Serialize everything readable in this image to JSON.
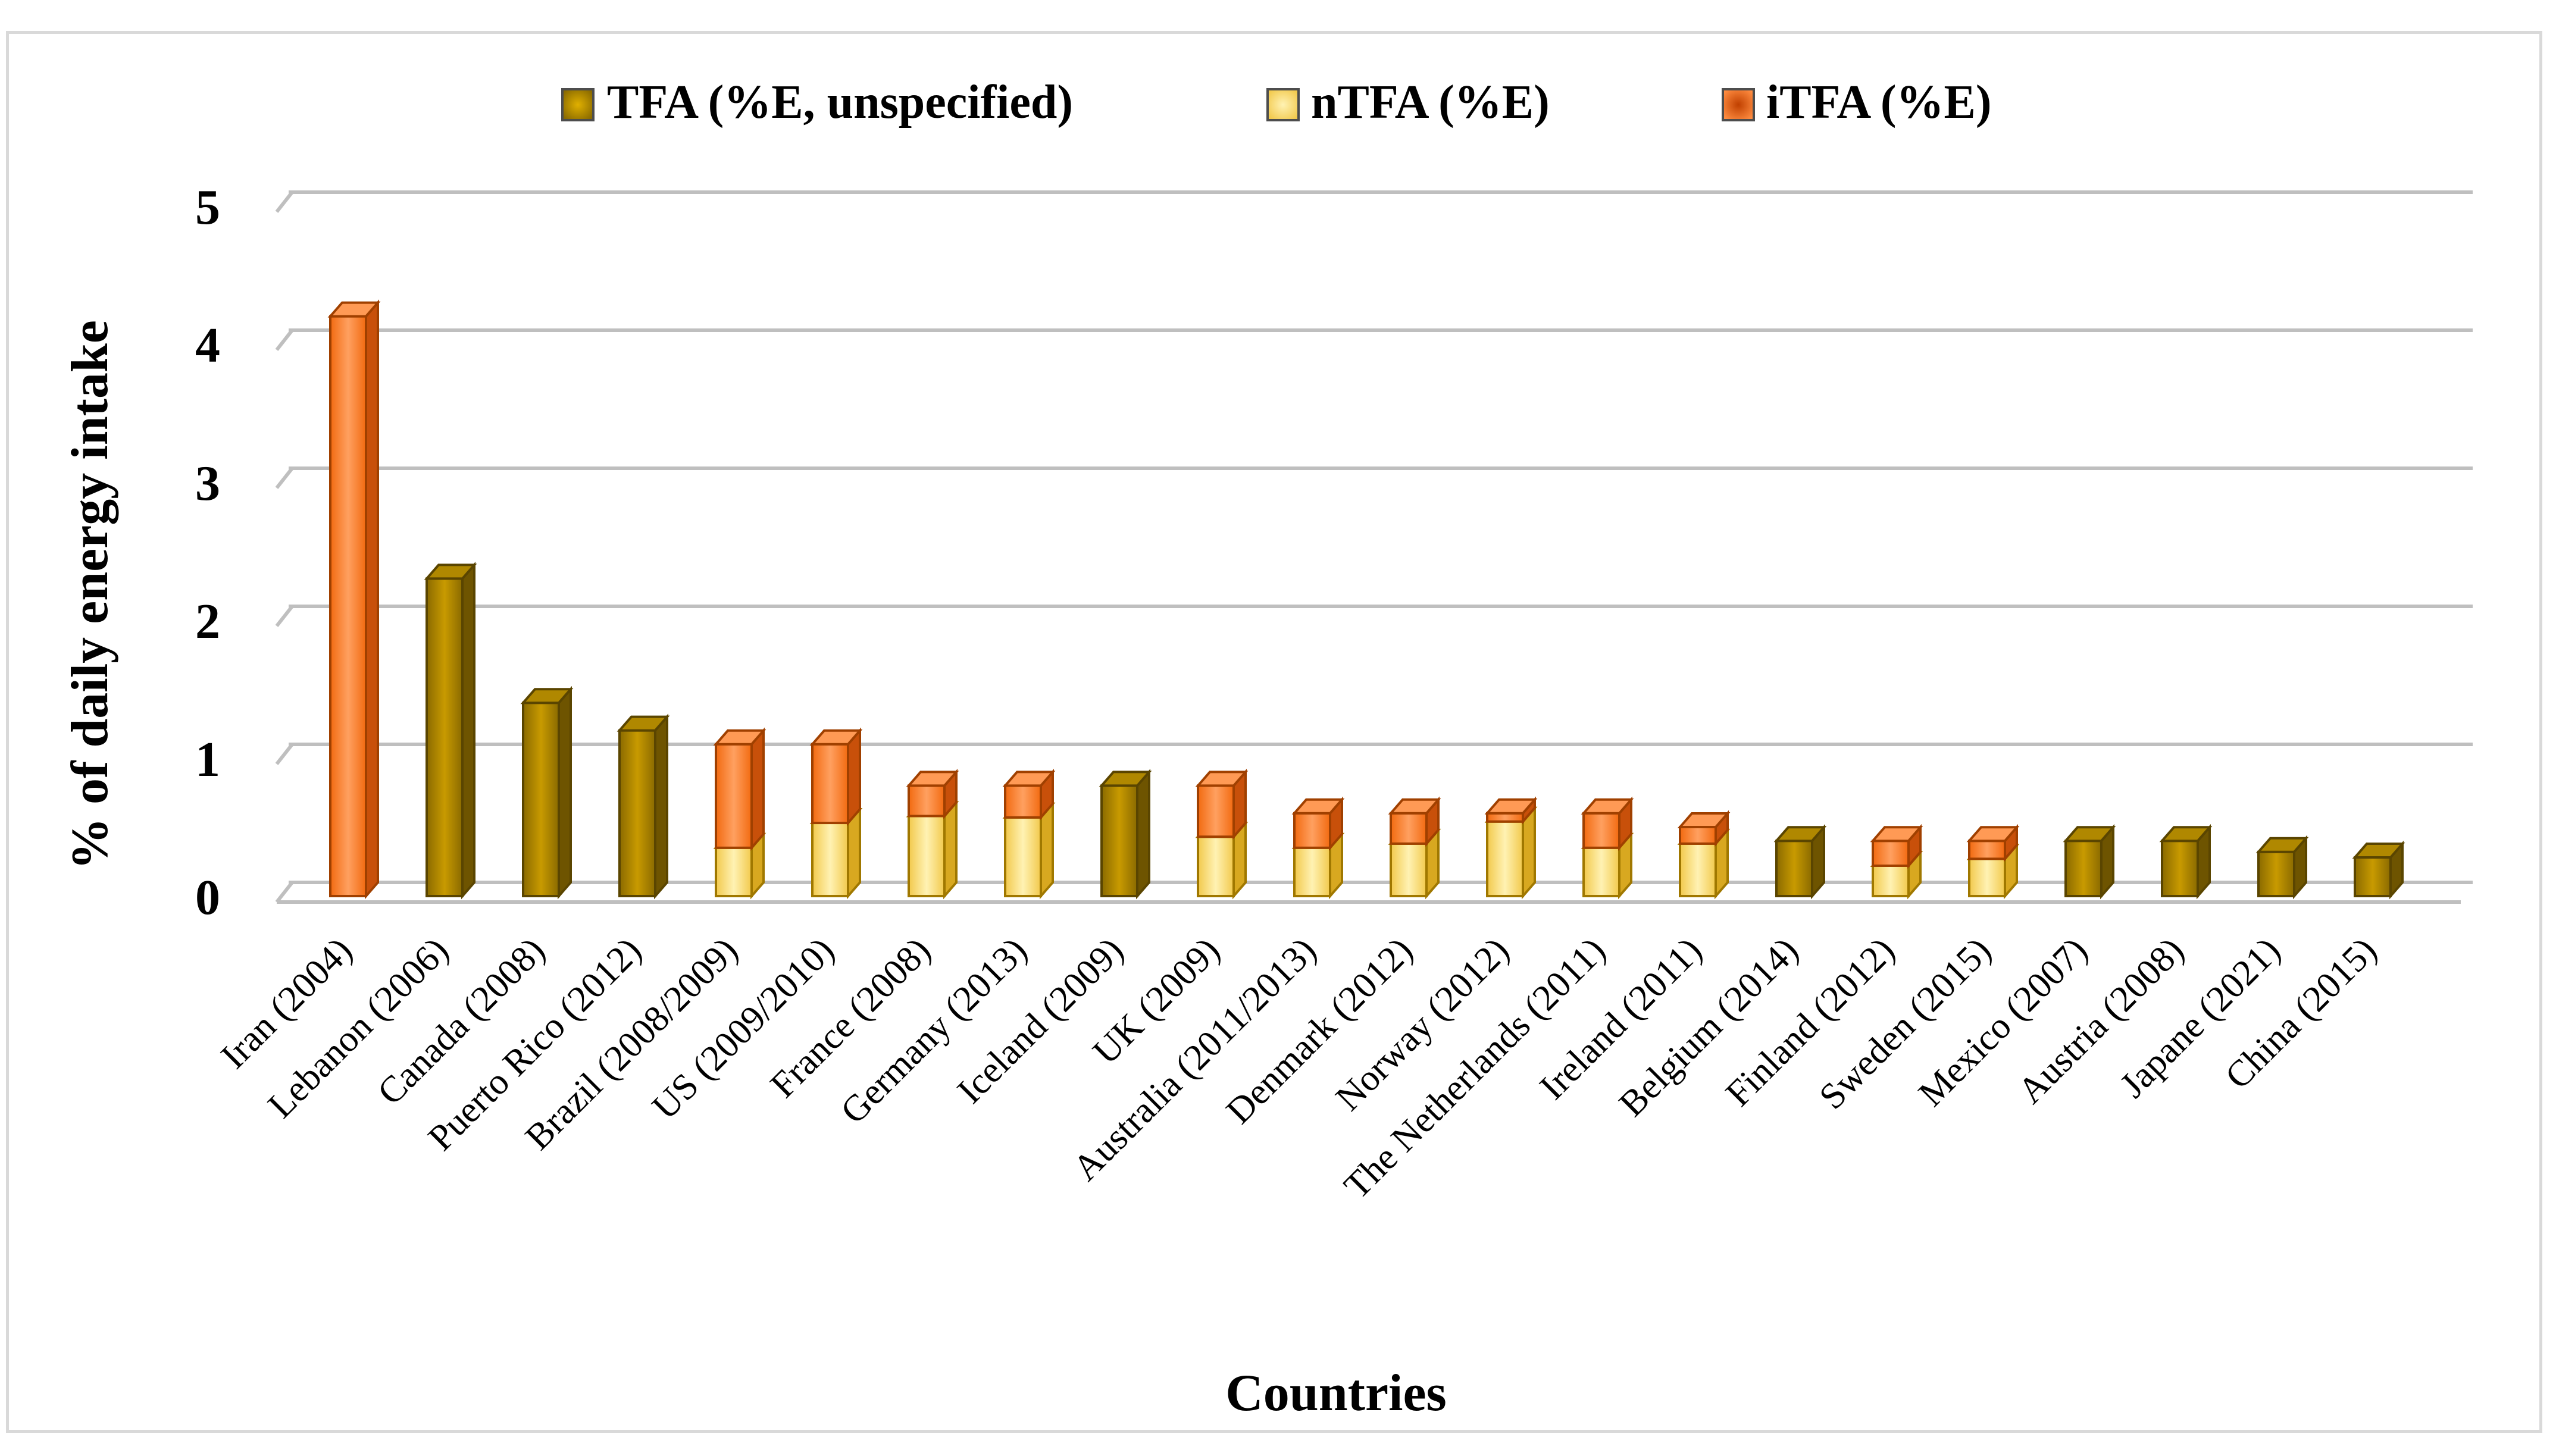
{
  "chart_data": {
    "type": "bar",
    "stacked": true,
    "three_d": true,
    "xlabel": "Countries",
    "ylabel": "% of daily energy intake",
    "ylim": [
      0,
      5
    ],
    "yticks": [
      0,
      1,
      2,
      3,
      4,
      5
    ],
    "grid": true,
    "legend_position": "top",
    "categories": [
      "Iran (2004)",
      "Lebanon (2006)",
      "Canada (2008)",
      "Puerto Rico (2012)",
      "Brazil (2008/2009)",
      "US (2009/2010)",
      "France (2008)",
      "Germany (2013)",
      "Iceland (2009)",
      "UK (2009)",
      "Australia (2011/2013)",
      "Denmark  (2012)",
      "Norway (2012)",
      "The Netherlands (2011)",
      "Ireland (2011)",
      "Belgium (2014)",
      "Finland (2012)",
      "Sweden (2015)",
      "Mexico (2007)",
      "Austria (2008)",
      "Japane (2021)",
      "China (2015)"
    ],
    "series": [
      {
        "name": "TFA (%E, unspecified)",
        "color": "#c09000",
        "values": [
          0,
          2.3,
          1.4,
          1.2,
          0,
          0,
          0,
          0,
          0.8,
          0,
          0,
          0,
          0,
          0,
          0,
          0.4,
          0,
          0,
          0.4,
          0.4,
          0.32,
          0.28
        ]
      },
      {
        "name": "nTFA (%E)",
        "color": "#ffd966",
        "values": [
          0,
          0,
          0,
          0,
          0.35,
          0.53,
          0.58,
          0.57,
          0,
          0.43,
          0.35,
          0.38,
          0.54,
          0.35,
          0.38,
          0,
          0.22,
          0.27,
          0,
          0,
          0,
          0
        ]
      },
      {
        "name": "iTFA (%E)",
        "color": "#ff7f27",
        "values": [
          4.2,
          0,
          0,
          0,
          0.75,
          0.57,
          0.22,
          0.23,
          0,
          0.37,
          0.25,
          0.22,
          0.06,
          0.25,
          0.12,
          0,
          0.18,
          0.13,
          0,
          0,
          0,
          0
        ]
      }
    ]
  }
}
